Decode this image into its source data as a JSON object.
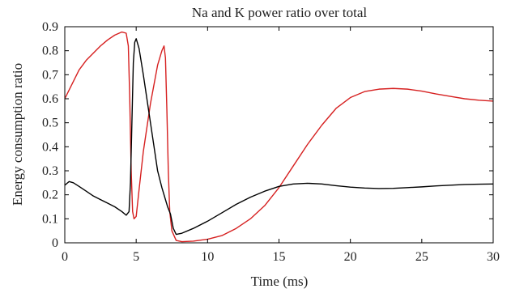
{
  "chart_data": {
    "type": "line",
    "title": "Na and K power ratio over total",
    "xlabel": "Time (ms)",
    "ylabel": "Energy consumption ratio",
    "xlim": [
      0,
      30
    ],
    "ylim": [
      0,
      0.9
    ],
    "xticks": [
      "0",
      "5",
      "10",
      "15",
      "20",
      "25",
      "30"
    ],
    "yticks": [
      "0",
      "0.1",
      "0.2",
      "0.3",
      "0.4",
      "0.5",
      "0.6",
      "0.7",
      "0.8",
      "0.9"
    ],
    "grid": false,
    "legend": false,
    "series": [
      {
        "color": "#d62020",
        "x": [
          0,
          0.5,
          1,
          1.5,
          2,
          2.5,
          3,
          3.5,
          4,
          4.3,
          4.45,
          4.55,
          4.65,
          4.75,
          4.85,
          5.0,
          5.2,
          5.5,
          6.0,
          6.5,
          6.8,
          6.95,
          7.05,
          7.15,
          7.25,
          7.35,
          7.5,
          7.8,
          8.2,
          9,
          10,
          11,
          12,
          13,
          14,
          15,
          16,
          17,
          18,
          19,
          20,
          21,
          22,
          23,
          24,
          25,
          26,
          27,
          28,
          29,
          30
        ],
        "y": [
          0.6,
          0.66,
          0.72,
          0.76,
          0.79,
          0.82,
          0.845,
          0.865,
          0.878,
          0.873,
          0.82,
          0.6,
          0.3,
          0.13,
          0.1,
          0.11,
          0.22,
          0.38,
          0.58,
          0.74,
          0.8,
          0.82,
          0.77,
          0.55,
          0.3,
          0.13,
          0.05,
          0.01,
          0.005,
          0.007,
          0.015,
          0.03,
          0.06,
          0.1,
          0.155,
          0.23,
          0.32,
          0.41,
          0.49,
          0.56,
          0.605,
          0.63,
          0.64,
          0.643,
          0.64,
          0.632,
          0.62,
          0.61,
          0.6,
          0.594,
          0.59
        ]
      },
      {
        "color": "#000000",
        "x": [
          0,
          0.3,
          0.6,
          1,
          1.5,
          2,
          2.5,
          3,
          3.5,
          4,
          4.3,
          4.5,
          4.6,
          4.7,
          4.8,
          4.9,
          5.0,
          5.2,
          5.5,
          6.0,
          6.5,
          6.8,
          7.0,
          7.2,
          7.4,
          7.6,
          7.8,
          8.2,
          9,
          10,
          11,
          12,
          13,
          14,
          15,
          16,
          17,
          18,
          19,
          20,
          21,
          22,
          23,
          24,
          25,
          26,
          27,
          28,
          29,
          30
        ],
        "y": [
          0.24,
          0.255,
          0.25,
          0.235,
          0.215,
          0.195,
          0.18,
          0.165,
          0.15,
          0.13,
          0.115,
          0.13,
          0.25,
          0.5,
          0.75,
          0.835,
          0.85,
          0.81,
          0.7,
          0.5,
          0.3,
          0.23,
          0.19,
          0.15,
          0.12,
          0.06,
          0.035,
          0.04,
          0.06,
          0.09,
          0.125,
          0.16,
          0.19,
          0.215,
          0.235,
          0.245,
          0.248,
          0.245,
          0.238,
          0.232,
          0.228,
          0.226,
          0.227,
          0.23,
          0.233,
          0.237,
          0.24,
          0.243,
          0.244,
          0.245
        ]
      }
    ]
  }
}
